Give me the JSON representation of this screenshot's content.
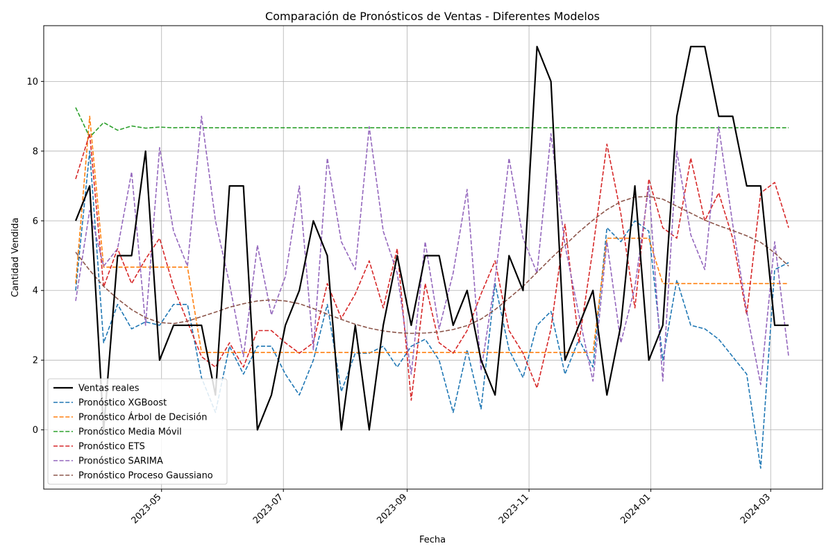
{
  "chart_data": {
    "type": "line",
    "title": "Comparación de Pronósticos de Ventas - Diferentes Modelos",
    "xlabel": "Fecha",
    "ylabel": "Cantidad Vendida",
    "x_start": "2023-03-19",
    "x_interval_days": 7,
    "x_tick_labels": [
      "2023-05",
      "2023-07",
      "2023-09",
      "2023-11",
      "2024-01",
      "2024-03"
    ],
    "x_tick_dates": [
      "2023-05-01",
      "2023-07-01",
      "2023-09-01",
      "2023-11-01",
      "2024-01-01",
      "2024-03-01"
    ],
    "xlim": [
      "2023-03-03",
      "2024-03-27"
    ],
    "y_ticks": [
      0,
      2,
      4,
      6,
      8,
      10
    ],
    "ylim": [
      -1.7,
      11.6
    ],
    "grid": true,
    "legend_position": "lower-left",
    "series": [
      {
        "name": "Ventas reales",
        "color": "#000000",
        "style": "solid",
        "values": [
          6,
          7,
          0,
          5,
          5,
          8,
          2,
          3,
          3,
          3,
          1,
          7,
          7,
          0,
          1,
          3,
          4,
          6,
          5,
          0,
          3,
          0,
          3,
          5,
          3,
          5,
          5,
          3,
          4,
          2,
          1,
          5,
          4,
          11,
          10,
          2,
          3,
          4,
          1,
          3,
          7,
          2,
          3,
          9,
          11,
          11,
          9,
          9,
          7,
          7,
          3,
          3
        ]
      },
      {
        "name": "Pronóstico XGBoost",
        "color": "#1f77b4",
        "style": "dashed",
        "values": [
          4.0,
          8.0,
          2.5,
          3.6,
          2.9,
          3.1,
          3.0,
          3.6,
          3.6,
          1.5,
          0.5,
          2.4,
          1.6,
          2.4,
          2.4,
          1.6,
          1.0,
          2.0,
          3.6,
          1.1,
          2.2,
          2.2,
          2.4,
          1.8,
          2.4,
          2.6,
          2.0,
          0.5,
          2.3,
          0.6,
          4.2,
          2.3,
          1.5,
          3.0,
          3.4,
          1.6,
          2.6,
          1.8,
          5.8,
          5.4,
          6.0,
          5.7,
          2.0,
          4.3,
          3.0,
          2.9,
          2.6,
          2.1,
          1.6,
          -1.1,
          4.6,
          4.8
        ]
      },
      {
        "name": "Pronóstico Árbol de Decisión",
        "color": "#ff7f0e",
        "style": "dashed",
        "values": [
          4.2,
          9.0,
          4.67,
          4.67,
          4.67,
          4.67,
          4.67,
          4.67,
          4.67,
          2.22,
          2.22,
          2.22,
          2.22,
          2.22,
          2.22,
          2.22,
          2.22,
          2.22,
          2.22,
          2.22,
          2.22,
          2.22,
          2.22,
          2.22,
          2.22,
          2.22,
          2.22,
          2.22,
          2.22,
          2.22,
          2.22,
          2.22,
          2.22,
          2.22,
          2.22,
          2.22,
          2.22,
          2.22,
          5.5,
          5.5,
          5.5,
          5.5,
          4.2,
          4.2,
          4.2,
          4.2,
          4.2,
          4.2,
          4.2,
          4.2,
          4.2,
          4.2
        ]
      },
      {
        "name": "Pronóstico Media Móvil",
        "color": "#2ca02c",
        "style": "dashed",
        "values": [
          9.25,
          8.4,
          8.82,
          8.6,
          8.72,
          8.66,
          8.69,
          8.67,
          8.68,
          8.67,
          8.67,
          8.67,
          8.67,
          8.67,
          8.67,
          8.67,
          8.67,
          8.67,
          8.67,
          8.67,
          8.67,
          8.67,
          8.67,
          8.67,
          8.67,
          8.67,
          8.67,
          8.67,
          8.67,
          8.67,
          8.67,
          8.67,
          8.67,
          8.67,
          8.67,
          8.67,
          8.67,
          8.67,
          8.67,
          8.67,
          8.67,
          8.67,
          8.67,
          8.67,
          8.67,
          8.67,
          8.67,
          8.67,
          8.67,
          8.67,
          8.67,
          8.67
        ]
      },
      {
        "name": "Pronóstico ETS",
        "color": "#d62728",
        "style": "dashed",
        "values": [
          7.2,
          8.5,
          4.1,
          5.2,
          4.2,
          4.9,
          5.5,
          4.1,
          3.1,
          2.1,
          1.8,
          2.5,
          1.8,
          2.85,
          2.85,
          2.5,
          2.2,
          2.5,
          4.2,
          3.2,
          3.9,
          4.85,
          3.5,
          5.2,
          0.85,
          4.2,
          2.5,
          2.2,
          2.85,
          3.9,
          4.85,
          2.85,
          2.2,
          1.2,
          2.9,
          5.9,
          2.5,
          5.2,
          8.2,
          6.2,
          3.5,
          7.2,
          5.8,
          5.5,
          7.8,
          6.0,
          6.8,
          5.5,
          3.3,
          6.8,
          7.1,
          5.8
        ]
      },
      {
        "name": "Pronóstico SARIMA",
        "color": "#9467bd",
        "style": "dashed",
        "values": [
          3.7,
          6.3,
          4.7,
          5.2,
          7.4,
          3.0,
          8.1,
          5.7,
          4.7,
          9.0,
          6.0,
          4.2,
          2.1,
          5.3,
          3.3,
          4.4,
          7.0,
          2.3,
          7.8,
          5.4,
          4.6,
          8.7,
          5.7,
          4.5,
          1.6,
          5.4,
          2.9,
          4.5,
          6.9,
          1.7,
          4.3,
          7.8,
          5.5,
          4.5,
          8.5,
          5.3,
          3.3,
          1.4,
          5.4,
          2.5,
          4.1,
          7.0,
          1.4,
          8.0,
          5.6,
          4.6,
          8.7,
          5.9,
          3.4,
          1.3,
          5.4,
          2.1
        ]
      },
      {
        "name": "Pronóstico Proceso Gaussiano",
        "color": "#8c564b",
        "style": "dashed",
        "values": [
          5.1,
          4.58,
          4.12,
          3.76,
          3.45,
          3.22,
          3.08,
          3.05,
          3.12,
          3.25,
          3.38,
          3.52,
          3.62,
          3.7,
          3.73,
          3.7,
          3.62,
          3.48,
          3.32,
          3.17,
          3.03,
          2.92,
          2.84,
          2.79,
          2.77,
          2.78,
          2.81,
          2.88,
          2.99,
          3.18,
          3.45,
          3.78,
          4.12,
          4.52,
          4.92,
          5.3,
          5.68,
          6.02,
          6.32,
          6.55,
          6.68,
          6.7,
          6.62,
          6.42,
          6.22,
          6.02,
          5.86,
          5.72,
          5.57,
          5.38,
          5.08,
          4.7
        ]
      }
    ]
  }
}
